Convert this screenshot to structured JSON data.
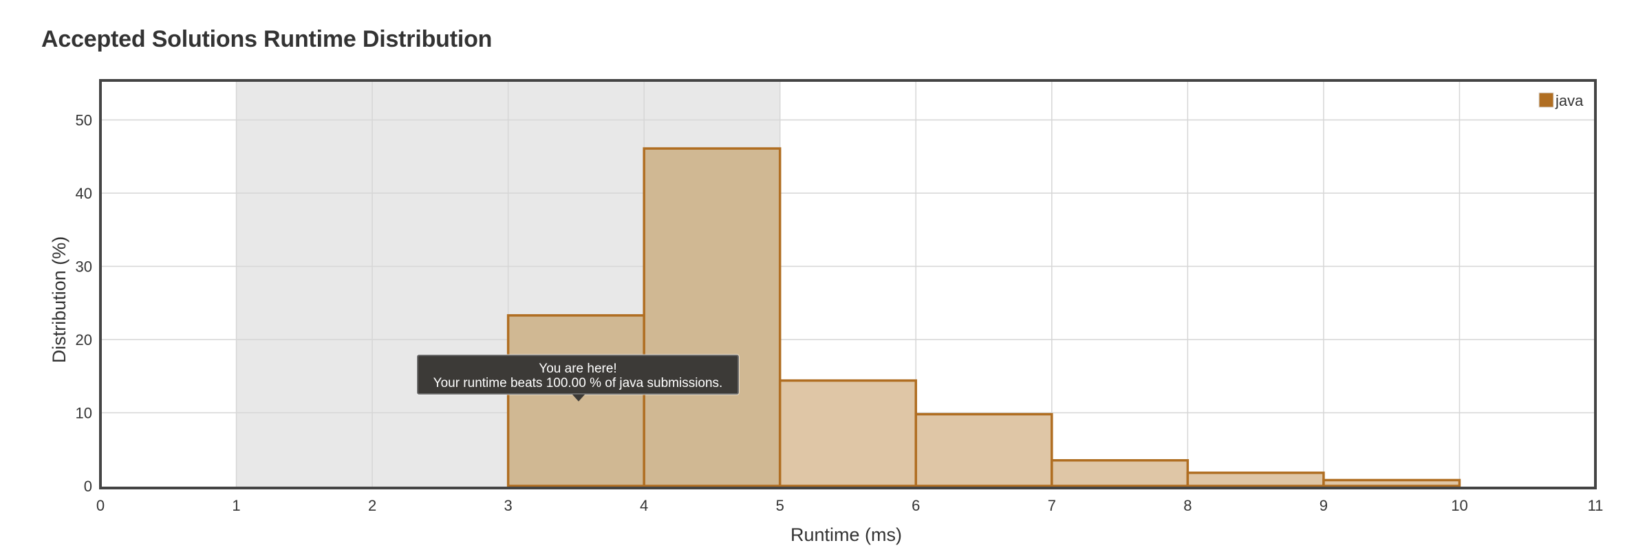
{
  "page": {
    "title": "Accepted Solutions Runtime Distribution"
  },
  "tooltip": {
    "line1": "You are here!",
    "line2": "Your runtime beats 100.00 % of java submissions."
  },
  "colors": {
    "bar_fill_highlight": "#d0b893",
    "bar_fill": "#dfc6a6",
    "bar_stroke": "#b06e22",
    "highlight_band": "#e8e8e8",
    "grid": "#d6d6d6",
    "frame": "#444444",
    "legend_swatch": "#b06e22"
  },
  "chart_data": {
    "type": "bar",
    "xlabel": "Runtime (ms)",
    "ylabel": "Distribution (%)",
    "xlim": [
      0,
      11
    ],
    "ylim": [
      0,
      55
    ],
    "xticks": [
      "0",
      "1",
      "2",
      "3",
      "4",
      "5",
      "6",
      "7",
      "8",
      "9",
      "10",
      "11"
    ],
    "yticks": [
      "0",
      "10",
      "20",
      "30",
      "40",
      "50"
    ],
    "grid": true,
    "legend_position": "top-right",
    "highlight_range": [
      1,
      5
    ],
    "series": [
      {
        "name": "java",
        "bins": [
          {
            "x0": 3,
            "x1": 4,
            "value": 23.3
          },
          {
            "x0": 4,
            "x1": 5,
            "value": 46.1
          },
          {
            "x0": 5,
            "x1": 6,
            "value": 14.4
          },
          {
            "x0": 6,
            "x1": 7,
            "value": 9.8
          },
          {
            "x0": 7,
            "x1": 8,
            "value": 3.5
          },
          {
            "x0": 8,
            "x1": 9,
            "value": 1.8
          },
          {
            "x0": 9,
            "x1": 10,
            "value": 0.8
          }
        ]
      }
    ]
  }
}
